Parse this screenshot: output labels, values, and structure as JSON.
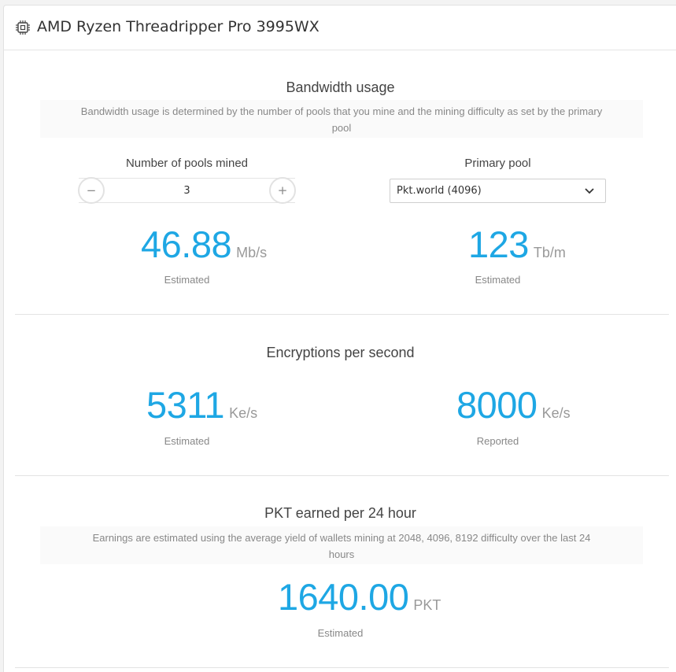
{
  "header": {
    "title": "AMD Ryzen Threadripper Pro 3995WX",
    "icon": "cpu-icon"
  },
  "bandwidth": {
    "title": "Bandwidth usage",
    "description": "Bandwidth usage is determined by the number of pools that you mine and the mining difficulty as set by the primary pool",
    "pools_label": "Number of pools mined",
    "pools_value": "3",
    "minus_label": "−",
    "plus_label": "+",
    "primary_pool_label": "Primary pool",
    "primary_pool_value": "Pkt.world (4096)",
    "rate_value": "46.88",
    "rate_unit": "Mb/s",
    "rate_caption": "Estimated",
    "monthly_value": "123",
    "monthly_unit": "Tb/m",
    "monthly_caption": "Estimated"
  },
  "encryptions": {
    "title": "Encryptions per second",
    "estimated_value": "5311",
    "estimated_unit": "Ke/s",
    "estimated_caption": "Estimated",
    "reported_value": "8000",
    "reported_unit": "Ke/s",
    "reported_caption": "Reported"
  },
  "earnings": {
    "title": "PKT earned per 24 hour",
    "description": "Earnings are estimated using the average yield of wallets mining at 2048, 4096, 8192 difficulty over the last 24 hours",
    "value": "1640.00",
    "unit": "PKT",
    "caption": "Estimated"
  },
  "colors": {
    "accent": "#1ea7e4",
    "muted": "#888888",
    "divider": "#e3e3e3"
  }
}
